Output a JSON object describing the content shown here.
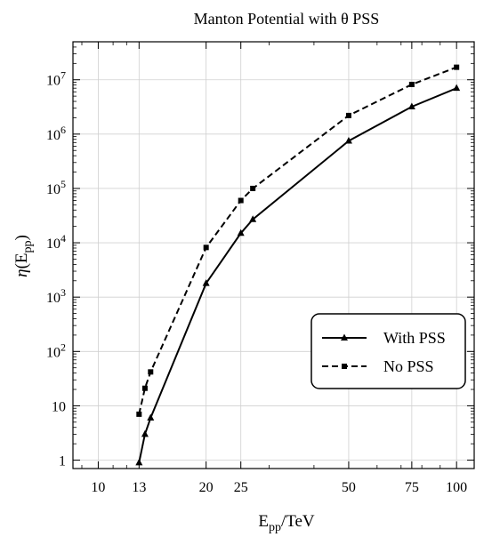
{
  "chart_data": {
    "type": "line",
    "title": "Manton Potential with θ PSS",
    "xlabel": {
      "main": "E",
      "sub": "pp",
      "rest": "/TeV"
    },
    "ylabel": {
      "eta": "η",
      "open": "(E",
      "sub": "pp",
      "close": ")"
    },
    "x_scale": "log",
    "y_scale": "log",
    "xlim": [
      8.5,
      112
    ],
    "ylim": [
      0.7,
      50000000
    ],
    "grid": true,
    "legend_position": "lower-right",
    "x_ticks": [
      10,
      13,
      20,
      25,
      50,
      75,
      100
    ],
    "x_tick_labels": [
      "10",
      "13",
      "20",
      "25",
      "50",
      "75",
      "100"
    ],
    "y_ticks": [
      1,
      10,
      100,
      1000,
      10000,
      100000,
      1000000,
      10000000
    ],
    "y_tick_labels": [
      {
        "base": "1",
        "exp": ""
      },
      {
        "base": "10",
        "exp": ""
      },
      {
        "base": "10",
        "exp": "2"
      },
      {
        "base": "10",
        "exp": "3"
      },
      {
        "base": "10",
        "exp": "4"
      },
      {
        "base": "10",
        "exp": "5"
      },
      {
        "base": "10",
        "exp": "6"
      },
      {
        "base": "10",
        "exp": "7"
      }
    ],
    "series": [
      {
        "name": "With PSS",
        "marker": "triangle",
        "dash": "solid",
        "x": [
          13,
          13.5,
          14,
          20,
          25,
          27,
          50,
          75,
          100
        ],
        "y": [
          0.9,
          3,
          6,
          1800,
          15000,
          27000,
          750000,
          3200000,
          7000000
        ]
      },
      {
        "name": "No PSS",
        "marker": "square",
        "dash": "dashed",
        "x": [
          13,
          13.5,
          14,
          20,
          25,
          27,
          50,
          75,
          100
        ],
        "y": [
          7,
          21,
          42,
          8200,
          60000,
          100000,
          2200000,
          8200000,
          17000000
        ]
      }
    ]
  }
}
